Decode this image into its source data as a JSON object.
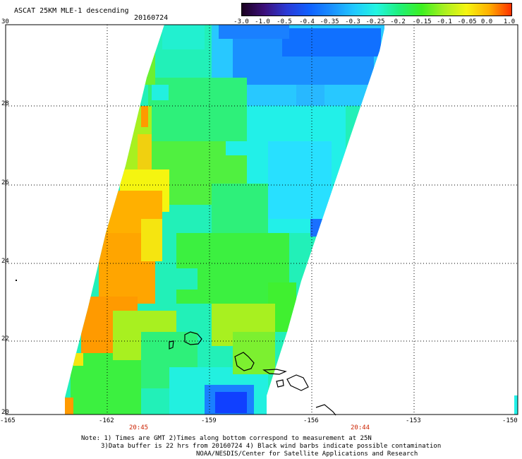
{
  "title": "ASCAT 25KM MLE-1 descending",
  "date": "20160724",
  "colorbar": {
    "labels": [
      "-3.0",
      "-1.0",
      "-0.5",
      "-0.4",
      "-0.35",
      "-0.3",
      "-0.25",
      "-0.2",
      "-0.15",
      "-0.1",
      "-0.05",
      "0.0",
      "1.0"
    ],
    "colors": [
      "#1a0020",
      "#3c0f7a",
      "#2a3ad6",
      "#1060ff",
      "#1a90ff",
      "#20c8ff",
      "#22f5e0",
      "#1ef07a",
      "#3cf020",
      "#a8f020",
      "#f5f510",
      "#ffb000",
      "#ff3000"
    ]
  },
  "axes": {
    "lat_labels": [
      "30",
      "28",
      "26",
      "24",
      "22",
      "20"
    ],
    "lon_labels": [
      "-165",
      "-162",
      "-159",
      "-156",
      "-153",
      "-150"
    ]
  },
  "times": [
    "20:45",
    "20:44"
  ],
  "notes": {
    "line1": "Note: 1) Times are GMT 2)Times along bottom correspond to measurement at 25N",
    "line2": "3)Data buffer is 22 hrs from 20160724 4) Black wind barbs indicate possible contamination",
    "line3": "NOAA/NESDIS/Center for Satellite Applications and Research"
  }
}
